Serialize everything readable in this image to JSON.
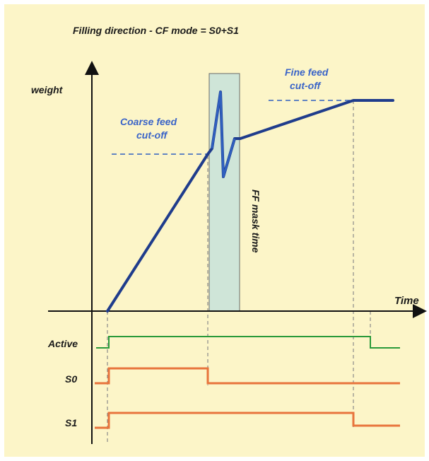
{
  "title": "Filling direction - CF mode = S0+S1",
  "axes": {
    "y_label": "weight",
    "x_label": "Time"
  },
  "annotations": {
    "coarse_line1": "Coarse feed",
    "coarse_line2": "cut-off",
    "fine_line1": "Fine feed",
    "fine_line2": "cut-off",
    "mask_label": "FF mask time"
  },
  "signals": [
    {
      "name": "Active",
      "color": "#2a9a3a"
    },
    {
      "name": "S0",
      "color": "#e8743c"
    },
    {
      "name": "S1",
      "color": "#e8743c"
    }
  ],
  "colors": {
    "background": "#fcf5c8",
    "weight_curve": "#1f3c8c",
    "cutoff_dash": "#2f5fbf",
    "mask_fill": "#cfe5d8",
    "annotation_text": "#3a64c8"
  }
}
